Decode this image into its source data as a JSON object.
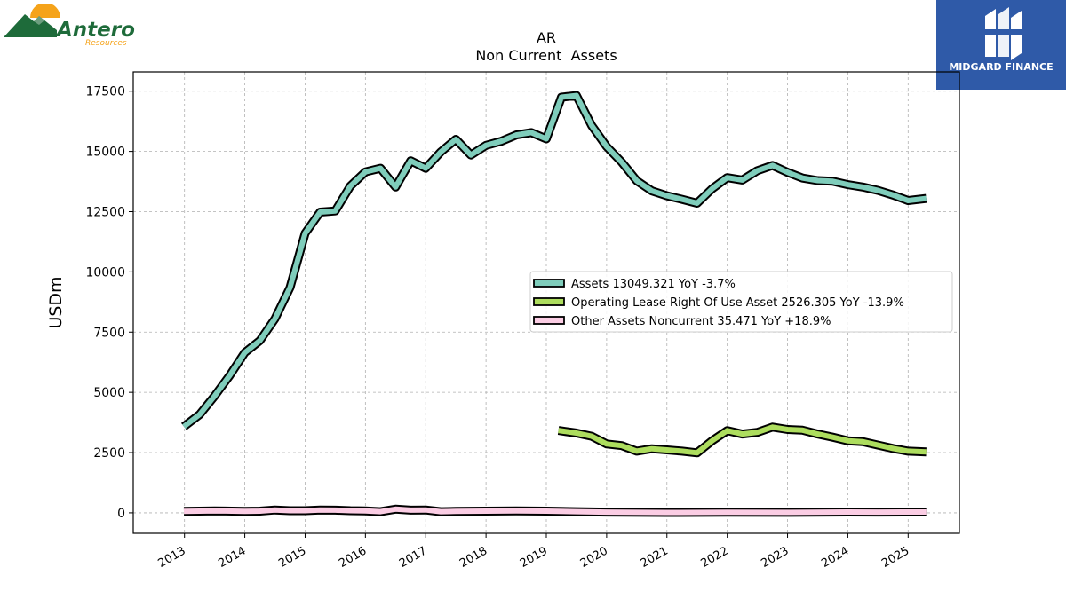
{
  "header": {
    "brand_logo_text": "Antero",
    "brand_logo_subtext": "Resources",
    "partner_logo_text": "MIDGARD FINANCE"
  },
  "colors": {
    "assets": "#7fcdbb",
    "operating_lease": "#addd5e",
    "other_assets": "#fbcde4",
    "outline": "#000000",
    "grid": "#b0b0b0",
    "brand_green": "#1e6b3a",
    "brand_orange": "#f5a31a",
    "partner_bg": "#2f5aa8"
  },
  "chart_data": {
    "type": "line",
    "title": "AR",
    "subtitle": "Non Current  Assets",
    "xlabel": "",
    "ylabel": "USDm",
    "ylim": [
      -850,
      18300
    ],
    "xlim": [
      2012.15,
      2025.85
    ],
    "yticks": [
      0,
      2500,
      5000,
      7500,
      10000,
      12500,
      15000,
      17500
    ],
    "ytick_labels": [
      "0",
      "2500",
      "5000",
      "7500",
      "10000",
      "12500",
      "15000",
      "17500"
    ],
    "xticks": [
      2013,
      2014,
      2015,
      2016,
      2017,
      2018,
      2019,
      2020,
      2021,
      2022,
      2023,
      2024,
      2025
    ],
    "xtick_labels": [
      "2013",
      "2014",
      "2015",
      "2016",
      "2017",
      "2018",
      "2019",
      "2020",
      "2021",
      "2022",
      "2023",
      "2024",
      "2025"
    ],
    "grid": true,
    "legend_position": "center-right",
    "series": [
      {
        "name": "Assets",
        "legend_label": "Assets  13049.321 YoY -3.7%",
        "color": "#7fcdbb",
        "points": [
          [
            2012.99,
            3580
          ],
          [
            2013.25,
            4080
          ],
          [
            2013.5,
            4850
          ],
          [
            2013.75,
            5700
          ],
          [
            2014.0,
            6650
          ],
          [
            2014.25,
            7150
          ],
          [
            2014.5,
            8050
          ],
          [
            2014.75,
            9350
          ],
          [
            2015.0,
            11600
          ],
          [
            2015.25,
            12480
          ],
          [
            2015.5,
            12530
          ],
          [
            2015.75,
            13560
          ],
          [
            2016.0,
            14150
          ],
          [
            2016.25,
            14300
          ],
          [
            2016.5,
            13520
          ],
          [
            2016.75,
            14610
          ],
          [
            2017.0,
            14300
          ],
          [
            2017.25,
            14980
          ],
          [
            2017.5,
            15500
          ],
          [
            2017.75,
            14850
          ],
          [
            2018.0,
            15250
          ],
          [
            2018.25,
            15420
          ],
          [
            2018.5,
            15680
          ],
          [
            2018.75,
            15780
          ],
          [
            2019.0,
            15520
          ],
          [
            2019.25,
            17250
          ],
          [
            2019.5,
            17320
          ],
          [
            2019.75,
            16080
          ],
          [
            2020.0,
            15200
          ],
          [
            2020.25,
            14550
          ],
          [
            2020.5,
            13780
          ],
          [
            2020.75,
            13360
          ],
          [
            2021.0,
            13160
          ],
          [
            2021.25,
            13010
          ],
          [
            2021.5,
            12850
          ],
          [
            2021.75,
            13450
          ],
          [
            2022.0,
            13910
          ],
          [
            2022.25,
            13810
          ],
          [
            2022.5,
            14200
          ],
          [
            2022.75,
            14420
          ],
          [
            2023.0,
            14130
          ],
          [
            2023.25,
            13890
          ],
          [
            2023.5,
            13790
          ],
          [
            2023.75,
            13760
          ],
          [
            2024.0,
            13620
          ],
          [
            2024.25,
            13520
          ],
          [
            2024.5,
            13380
          ],
          [
            2024.75,
            13190
          ],
          [
            2025.0,
            12960
          ],
          [
            2025.3,
            13049
          ]
        ]
      },
      {
        "name": "Operating Lease Right Of Use Asset",
        "legend_label": "Operating Lease Right Of Use Asset  2526.305 YoY -13.9%",
        "color": "#addd5e",
        "points": [
          [
            2019.2,
            3420
          ],
          [
            2019.5,
            3310
          ],
          [
            2019.75,
            3180
          ],
          [
            2020.0,
            2860
          ],
          [
            2020.25,
            2790
          ],
          [
            2020.5,
            2560
          ],
          [
            2020.75,
            2660
          ],
          [
            2021.0,
            2610
          ],
          [
            2021.25,
            2560
          ],
          [
            2021.5,
            2490
          ],
          [
            2021.75,
            2990
          ],
          [
            2022.0,
            3410
          ],
          [
            2022.25,
            3270
          ],
          [
            2022.5,
            3340
          ],
          [
            2022.75,
            3560
          ],
          [
            2023.0,
            3460
          ],
          [
            2023.25,
            3430
          ],
          [
            2023.5,
            3270
          ],
          [
            2023.75,
            3140
          ],
          [
            2024.0,
            2990
          ],
          [
            2024.25,
            2950
          ],
          [
            2024.5,
            2810
          ],
          [
            2024.75,
            2670
          ],
          [
            2025.0,
            2560
          ],
          [
            2025.3,
            2526
          ]
        ]
      },
      {
        "name": "Other Assets Noncurrent",
        "legend_label": "Other Assets Noncurrent  35.471 YoY +18.9%",
        "color": "#fbcde4",
        "points": [
          [
            2012.99,
            60
          ],
          [
            2013.5,
            80
          ],
          [
            2014.0,
            60
          ],
          [
            2014.25,
            70
          ],
          [
            2014.5,
            120
          ],
          [
            2014.75,
            90
          ],
          [
            2015.0,
            90
          ],
          [
            2015.25,
            120
          ],
          [
            2015.5,
            110
          ],
          [
            2015.75,
            90
          ],
          [
            2016.0,
            80
          ],
          [
            2016.25,
            50
          ],
          [
            2016.5,
            150
          ],
          [
            2016.75,
            110
          ],
          [
            2017.0,
            120
          ],
          [
            2017.25,
            50
          ],
          [
            2017.5,
            60
          ],
          [
            2018.0,
            70
          ],
          [
            2018.5,
            80
          ],
          [
            2019.0,
            70
          ],
          [
            2019.5,
            50
          ],
          [
            2020.0,
            30
          ],
          [
            2021.0,
            15
          ],
          [
            2022.0,
            25
          ],
          [
            2023.0,
            20
          ],
          [
            2024.0,
            35
          ],
          [
            2024.5,
            30
          ],
          [
            2025.0,
            35
          ],
          [
            2025.3,
            35
          ]
        ]
      }
    ]
  }
}
